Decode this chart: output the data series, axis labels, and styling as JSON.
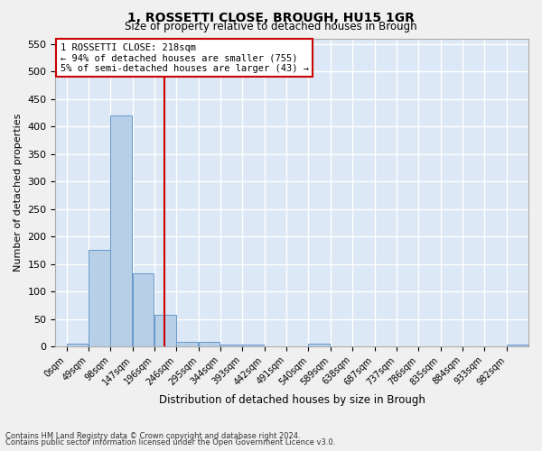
{
  "title": "1, ROSSETTI CLOSE, BROUGH, HU15 1GR",
  "subtitle": "Size of property relative to detached houses in Brough",
  "xlabel": "Distribution of detached houses by size in Brough",
  "ylabel": "Number of detached properties",
  "bar_labels": [
    "0sqm",
    "49sqm",
    "98sqm",
    "147sqm",
    "196sqm",
    "246sqm",
    "295sqm",
    "344sqm",
    "393sqm",
    "442sqm",
    "491sqm",
    "540sqm",
    "589sqm",
    "638sqm",
    "687sqm",
    "737sqm",
    "786sqm",
    "835sqm",
    "884sqm",
    "933sqm",
    "982sqm"
  ],
  "bar_values": [
    5,
    175,
    420,
    133,
    57,
    8,
    8,
    3,
    4,
    0,
    0,
    5,
    0,
    0,
    0,
    0,
    0,
    0,
    0,
    0,
    3
  ],
  "bar_color": "#b8cfe8",
  "bar_edge_color": "#6699cc",
  "property_label": "1 ROSSETTI CLOSE: 218sqm",
  "annotation_line1": "← 94% of detached houses are smaller (755)",
  "annotation_line2": "5% of semi-detached houses are larger (43) →",
  "vline_color": "#cc0000",
  "vline_x": 218,
  "annotation_box_color": "#cc0000",
  "ylim": [
    0,
    560
  ],
  "yticks": [
    0,
    50,
    100,
    150,
    200,
    250,
    300,
    350,
    400,
    450,
    500,
    550
  ],
  "footnote1": "Contains HM Land Registry data © Crown copyright and database right 2024.",
  "footnote2": "Contains public sector information licensed under the Open Government Licence v3.0.",
  "bg_color": "#dce8f5",
  "grid_color": "#ffffff",
  "bin_width": 49
}
